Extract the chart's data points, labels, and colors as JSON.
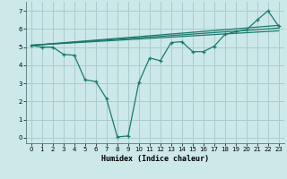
{
  "title": "",
  "xlabel": "Humidex (Indice chaleur)",
  "ylabel": "",
  "bg_color": "#cce8e8",
  "grid_color": "#aacccc",
  "line_color": "#1a7a6e",
  "xlim": [
    -0.5,
    23.5
  ],
  "ylim": [
    -0.3,
    7.5
  ],
  "xticks": [
    0,
    1,
    2,
    3,
    4,
    5,
    6,
    7,
    8,
    9,
    10,
    11,
    12,
    13,
    14,
    15,
    16,
    17,
    18,
    19,
    20,
    21,
    22,
    23
  ],
  "yticks": [
    0,
    1,
    2,
    3,
    4,
    5,
    6,
    7
  ],
  "line1": {
    "x": [
      0,
      1,
      2,
      3,
      4,
      5,
      6,
      7,
      8,
      9,
      10,
      11,
      12,
      13,
      14,
      15,
      16,
      17,
      18,
      19,
      20,
      21,
      22,
      23
    ],
    "y": [
      5.1,
      5.0,
      5.0,
      4.6,
      4.55,
      3.2,
      3.1,
      2.15,
      0.05,
      0.1,
      3.05,
      4.4,
      4.25,
      5.25,
      5.3,
      4.75,
      4.75,
      5.05,
      5.7,
      5.85,
      5.95,
      6.5,
      7.0,
      6.15
    ]
  },
  "line2": {
    "x": [
      0,
      23
    ],
    "y": [
      5.1,
      6.2
    ]
  },
  "line3": {
    "x": [
      0,
      23
    ],
    "y": [
      5.1,
      6.05
    ]
  },
  "line4": {
    "x": [
      0,
      23
    ],
    "y": [
      5.1,
      5.9
    ]
  }
}
